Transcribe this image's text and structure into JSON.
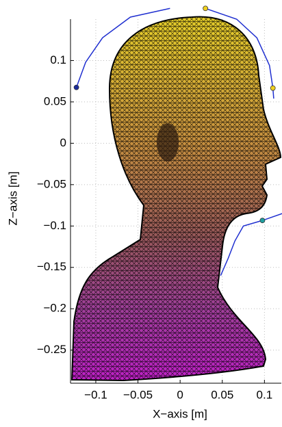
{
  "chart_data": {
    "type": "line",
    "xlabel": "X−axis [m]",
    "ylabel": "Z−axis [m]",
    "xlim": [
      -0.13,
      0.12
    ],
    "ylim": [
      -0.29,
      0.15
    ],
    "xticks": [
      {
        "value": -0.1,
        "label": "−0.1"
      },
      {
        "value": -0.05,
        "label": "−0.05"
      },
      0,
      0.05,
      0.1
    ],
    "yticks": [
      {
        "value": -0.25,
        "label": "−0.25"
      },
      {
        "value": -0.2,
        "label": "−0.2"
      },
      {
        "value": -0.15,
        "label": "−0.15"
      },
      {
        "value": -0.1,
        "label": "−0.1"
      },
      {
        "value": -0.05,
        "label": "−0.05"
      },
      0,
      0.05,
      0.1
    ],
    "grid": true,
    "series": [
      {
        "color": "#1f2fd0",
        "x": [
          -0.123,
          -0.112,
          -0.092,
          -0.059,
          -0.012
        ],
        "y": [
          0.0675,
          0.098,
          0.1275,
          0.1525,
          0.163
        ]
      },
      {
        "color": "#1f2fd0",
        "x": [
          0.03,
          0.067,
          0.091,
          0.106,
          0.11,
          0.111
        ],
        "y": [
          0.163,
          0.15,
          0.1275,
          0.094,
          0.0667,
          0.054
        ]
      },
      {
        "color": "#1f2fd0",
        "x": [
          0.121,
          0.0976,
          0.075,
          0.065,
          0.057,
          0.048
        ],
        "y": [
          -0.085,
          -0.0933,
          -0.1,
          -0.118,
          -0.139,
          -0.16
        ]
      }
    ],
    "markers": [
      {
        "color": "#1a2a9a",
        "x": -0.123,
        "y": 0.0675
      },
      {
        "color": "#f0d020",
        "x": 0.03,
        "y": 0.163
      },
      {
        "color": "#f0d020",
        "x": 0.11,
        "y": 0.0667
      },
      {
        "color": "#20a0a0",
        "x": 0.0976,
        "y": -0.0933
      }
    ]
  }
}
